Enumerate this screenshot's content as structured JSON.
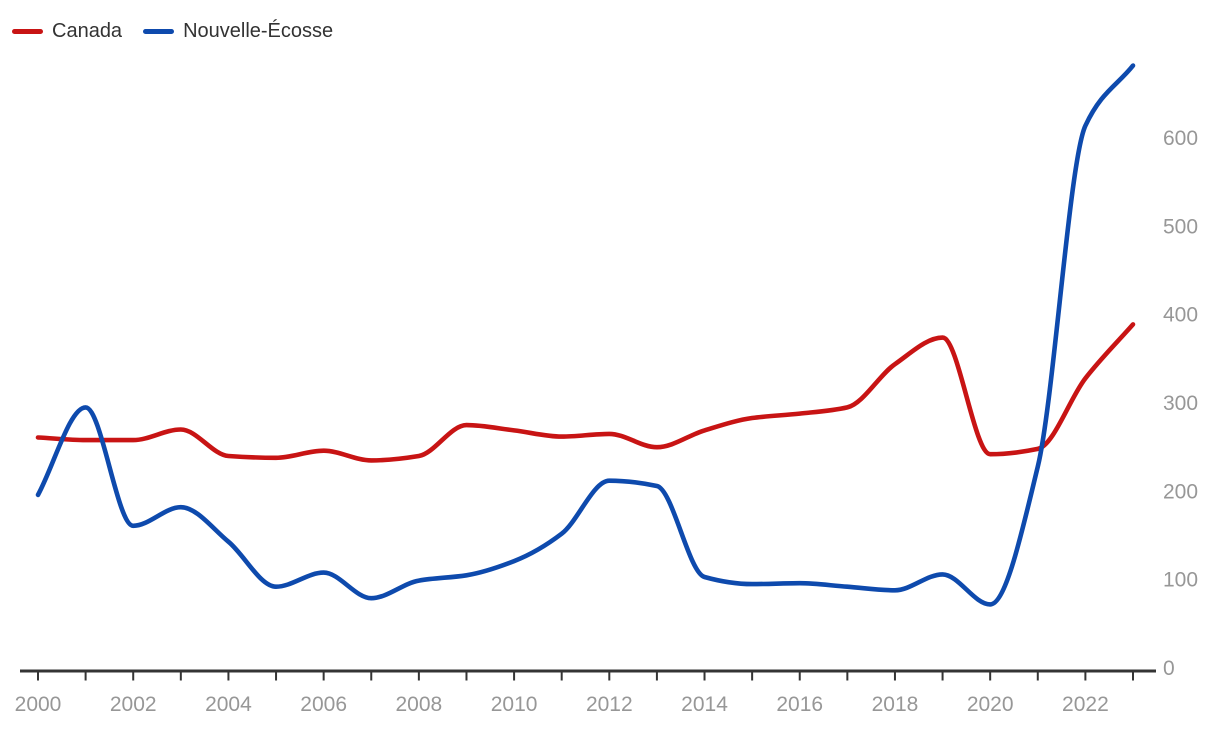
{
  "chart_data": {
    "type": "line",
    "title": "",
    "x": [
      2000,
      2001,
      2002,
      2003,
      2004,
      2005,
      2006,
      2007,
      2008,
      2009,
      2010,
      2011,
      2012,
      2013,
      2014,
      2015,
      2016,
      2017,
      2018,
      2019,
      2020,
      2021,
      2022,
      2023
    ],
    "series": [
      {
        "name": "Canada",
        "color": "#c81414",
        "values": [
          261,
          258,
          258,
          270,
          240,
          238,
          246,
          235,
          240,
          275,
          269,
          262,
          265,
          250,
          269,
          283,
          288,
          295,
          344,
          374,
          242,
          248,
          328,
          389
        ]
      },
      {
        "name": "Nouvelle-Écosse",
        "color": "#0e4aad",
        "values": [
          196,
          295,
          161,
          182,
          143,
          92,
          108,
          79,
          99,
          105,
          121,
          152,
          212,
          206,
          103,
          95,
          96,
          92,
          88,
          106,
          72,
          228,
          614,
          682
        ]
      }
    ],
    "xtick_labels": [
      "2000",
      "2002",
      "2004",
      "2006",
      "2008",
      "2010",
      "2012",
      "2014",
      "2016",
      "2018",
      "2020",
      "2022"
    ],
    "yticks": [
      0,
      100,
      200,
      300,
      400,
      500,
      600
    ],
    "ylim": [
      0,
      700
    ],
    "xlim": [
      2000,
      2023
    ],
    "grid": false,
    "y_axis_side": "right",
    "legend_position": "top-left",
    "minor_xticks_every": 1
  },
  "colors": {
    "axis": "#343434",
    "tick_label": "#979797",
    "legend_text": "#333333",
    "background": "#ffffff"
  }
}
